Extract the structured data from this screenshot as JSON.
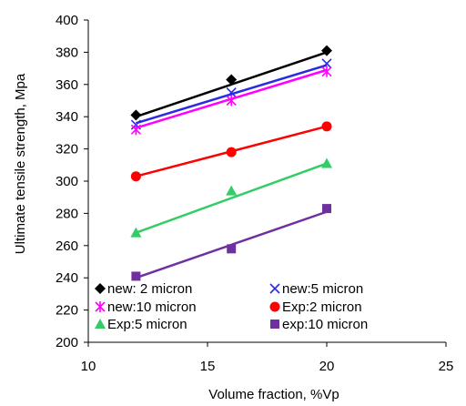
{
  "chart_data": {
    "type": "scatter",
    "title": "",
    "xlabel": "Volume fraction, %Vp",
    "ylabel": "Ultimate tensile strength, Mpa",
    "xlim": [
      10,
      25
    ],
    "ylim": [
      200,
      400
    ],
    "xticks": [
      "10",
      "15",
      "20",
      "25"
    ],
    "yticks": [
      "200",
      "220",
      "240",
      "260",
      "280",
      "300",
      "320",
      "340",
      "360",
      "380",
      "400"
    ],
    "grid": false,
    "legend_position": "bottom-left, inside plot",
    "series": [
      {
        "name": "new: 2 micron",
        "marker": "diamond",
        "color": "#000000",
        "x": [
          12,
          16,
          20
        ],
        "y": [
          341,
          363,
          381
        ],
        "fit": [
          [
            12,
            340
          ],
          [
            20,
            380
          ]
        ]
      },
      {
        "name": "new:5 micron",
        "marker": "x",
        "color": "#2a2ae6",
        "x": [
          12,
          16,
          20
        ],
        "y": [
          335,
          355,
          373
        ],
        "fit": [
          [
            12,
            336
          ],
          [
            20,
            372
          ]
        ]
      },
      {
        "name": "new:10 micron",
        "marker": "asterisk",
        "color": "#ff00ff",
        "x": [
          12,
          16,
          20
        ],
        "y": [
          332,
          350,
          368
        ],
        "fit": [
          [
            12,
            333
          ],
          [
            20,
            369
          ]
        ]
      },
      {
        "name": "Exp:2 micron",
        "marker": "circle",
        "color": "#ff0000",
        "x": [
          12,
          16,
          20
        ],
        "y": [
          303,
          318,
          334
        ],
        "fit": [
          [
            12,
            303
          ],
          [
            20,
            334
          ]
        ]
      },
      {
        "name": "Exp:5 micron",
        "marker": "triangle",
        "color": "#33cc66",
        "x": [
          12,
          16,
          20
        ],
        "y": [
          268,
          294,
          311
        ],
        "fit": [
          [
            12,
            268
          ],
          [
            20,
            311
          ]
        ]
      },
      {
        "name": "exp:10 micron",
        "marker": "square",
        "color": "#7030a0",
        "x": [
          12,
          16,
          20
        ],
        "y": [
          241,
          258,
          283
        ],
        "fit": [
          [
            12,
            240
          ],
          [
            20,
            281
          ]
        ]
      }
    ]
  }
}
